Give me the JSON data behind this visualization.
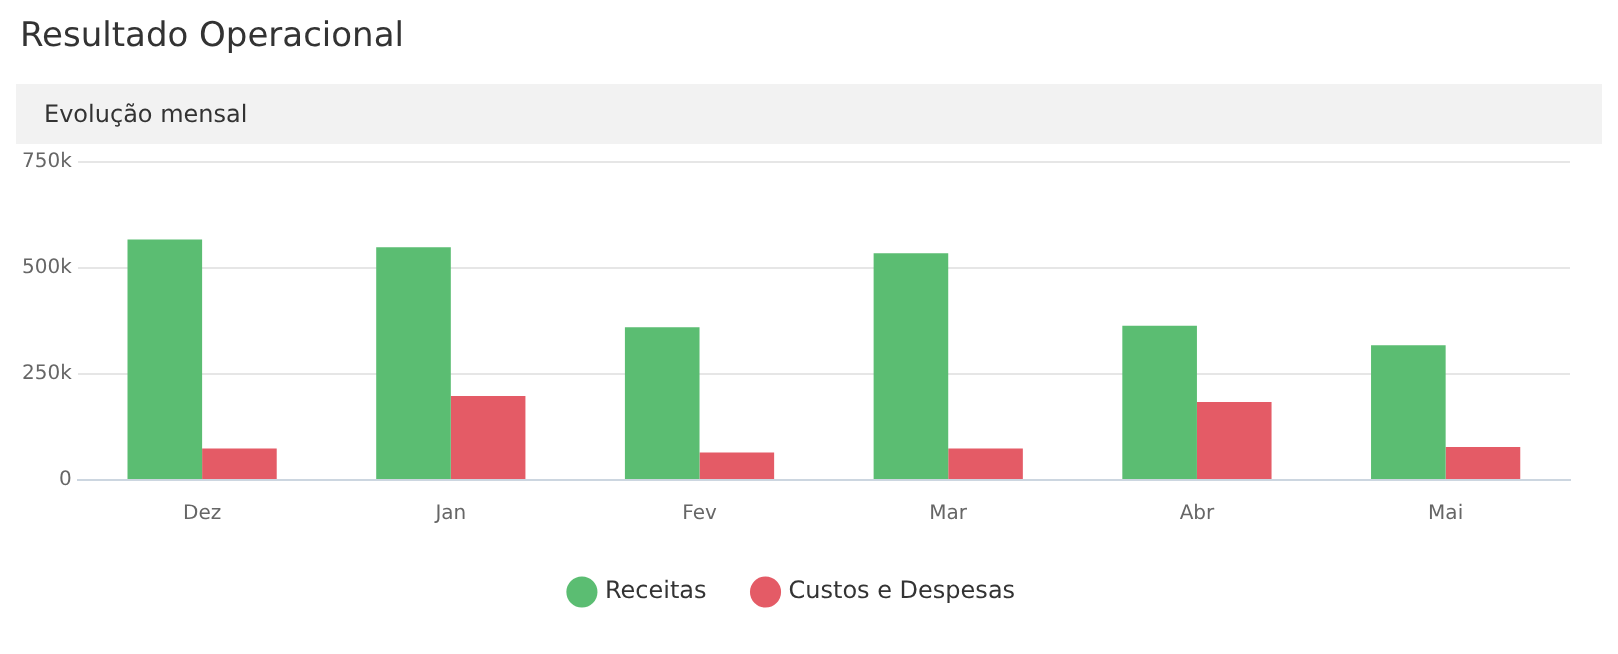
{
  "chart_data": {
    "type": "bar",
    "title": "Resultado Operacional",
    "subtitle": "Evolução mensal",
    "categories": [
      "Dez",
      "Jan",
      "Fev",
      "Mar",
      "Abr",
      "Mai"
    ],
    "series": [
      {
        "name": "Receitas",
        "color": "#5bbd72",
        "values": [
          567000,
          549000,
          360000,
          535000,
          364000,
          318000
        ]
      },
      {
        "name": "Custos e Despesas",
        "color": "#e45b66",
        "values": [
          74000,
          198000,
          65000,
          74000,
          184000,
          78000
        ]
      }
    ],
    "ylim": [
      0,
      750000
    ],
    "yticks": [
      0,
      {
        "value": 250000,
        "label": "250k"
      },
      {
        "value": 500000,
        "label": "500k"
      },
      {
        "value": 750000,
        "label": "750k"
      }
    ],
    "grid": "y",
    "legend": "bottom"
  }
}
